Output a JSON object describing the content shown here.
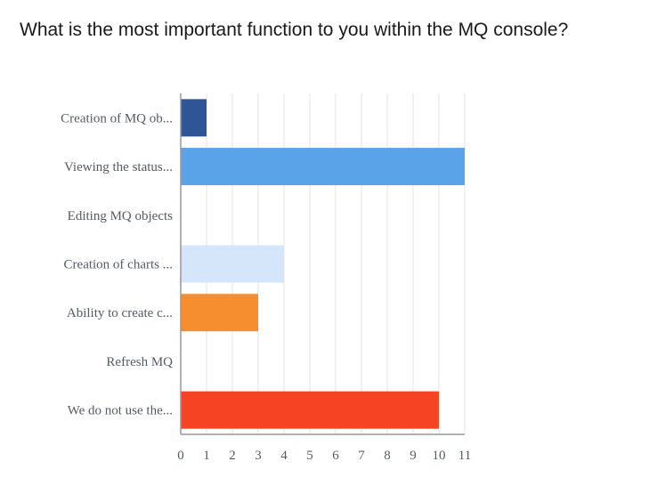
{
  "question": "What is the most important function to you within the MQ console?",
  "chart_data": {
    "type": "bar",
    "orientation": "horizontal",
    "title": "",
    "xlabel": "",
    "ylabel": "",
    "categories": [
      "Creation of MQ ob...",
      "Viewing the status...",
      "Editing MQ objects",
      "Creation of charts ...",
      "Ability to create c...",
      "Refresh MQ",
      "We do not use the..."
    ],
    "values": [
      1,
      11,
      0,
      4,
      3,
      0,
      10
    ],
    "colors": [
      "#2f5597",
      "#5ba3e8",
      "#4caf50",
      "#d6e6fa",
      "#f68e2f",
      "#7b5cc4",
      "#f54323"
    ],
    "xlim": [
      0,
      11
    ],
    "xticks": [
      "0",
      "1",
      "2",
      "3",
      "4",
      "5",
      "6",
      "7",
      "8",
      "9",
      "10",
      "11"
    ],
    "grid": true,
    "legend": "none"
  }
}
